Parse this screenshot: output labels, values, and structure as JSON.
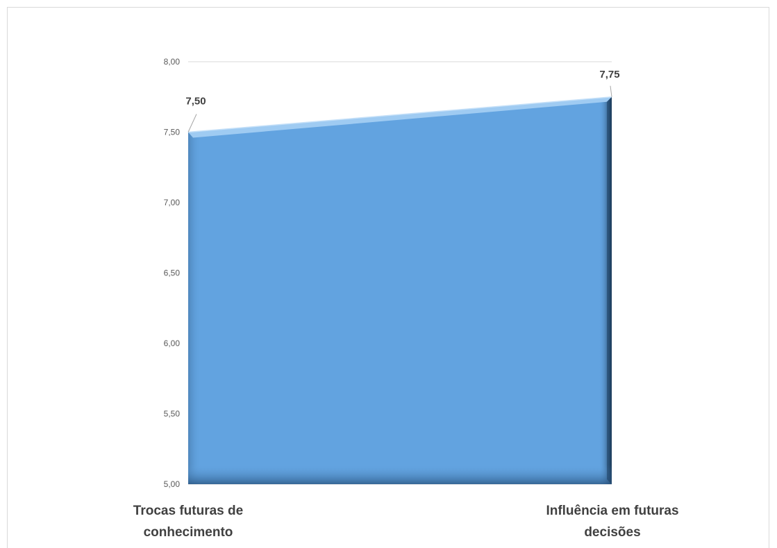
{
  "chart_data": {
    "type": "area",
    "categories": [
      [
        "Trocas futuras de",
        "conhecimento"
      ],
      [
        "Influência em futuras",
        "decisões"
      ]
    ],
    "values": [
      7.5,
      7.75
    ],
    "data_labels": [
      "7,50",
      "7,75"
    ],
    "ylim": [
      5.0,
      8.0
    ],
    "yticks": [
      5.0,
      5.5,
      6.0,
      6.5,
      7.0,
      7.5,
      8.0
    ],
    "ytick_labels": [
      "5,00",
      "5,50",
      "6,00",
      "6,50",
      "7,00",
      "7,50",
      "8,00"
    ],
    "grid": true,
    "legend": "none",
    "colors": {
      "fill": "#62a3e0",
      "fill_light": "#9fcbf2",
      "fill_dark": "#1e3f62",
      "gridline": "#d9d9d9",
      "axis_text": "#595959",
      "label_text": "#404040"
    }
  }
}
